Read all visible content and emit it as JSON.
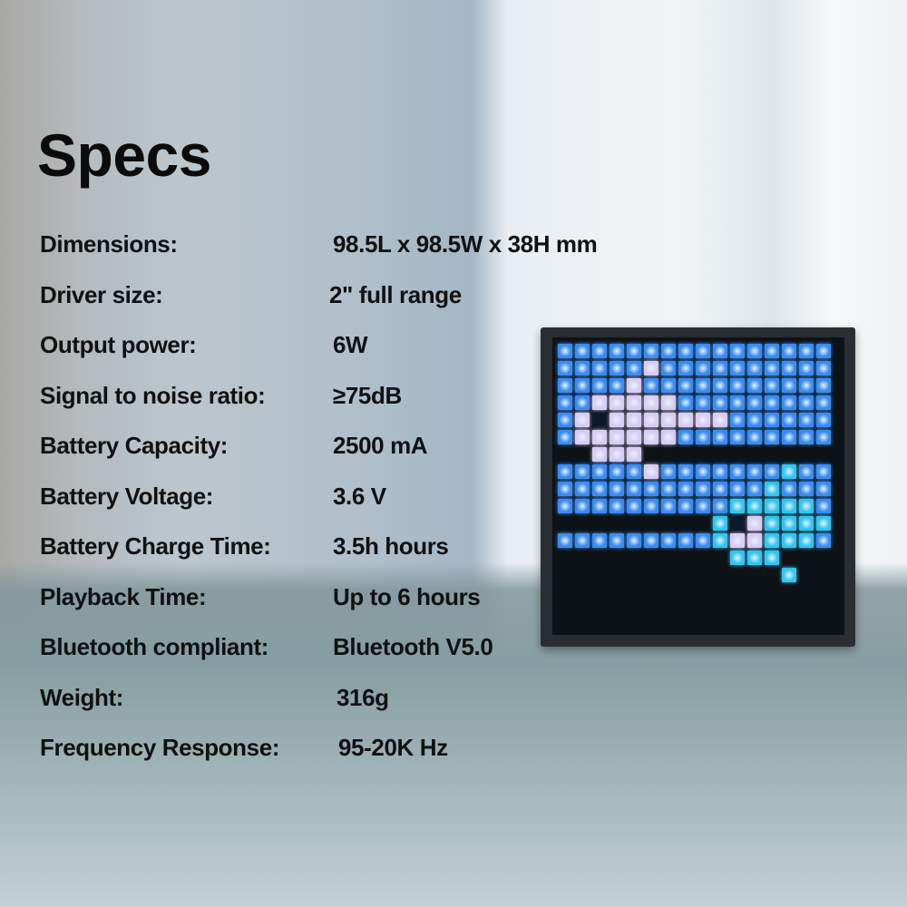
{
  "title": "Specs",
  "specs": [
    {
      "label": "Dimensions:",
      "value": "98.5L x 98.5W x 38H mm"
    },
    {
      "label": "Driver size:",
      "value": "2\" full range"
    },
    {
      "label": "Output power:",
      "value": "6W"
    },
    {
      "label": "Signal to noise ratio:",
      "value": "≥75dB"
    },
    {
      "label": "Battery Capacity:",
      "value": "2500 mA"
    },
    {
      "label": "Battery Voltage:",
      "value": "3.6 V"
    },
    {
      "label": "Battery Charge Time:",
      "value": "3.5h hours"
    },
    {
      "label": "Playback Time:",
      "value": "Up to 6 hours"
    },
    {
      "label": "Bluetooth compliant:",
      "value": "Bluetooth V5.0"
    },
    {
      "label": "Weight:",
      "value": "316g"
    },
    {
      "label": "Frequency Response:",
      "value": "95-20K Hz"
    }
  ],
  "colors": {
    "text": "#111111",
    "led_blue": "#3a8cf0",
    "led_lavender": "#d8ccf4",
    "led_cyan": "#33c4f0"
  }
}
